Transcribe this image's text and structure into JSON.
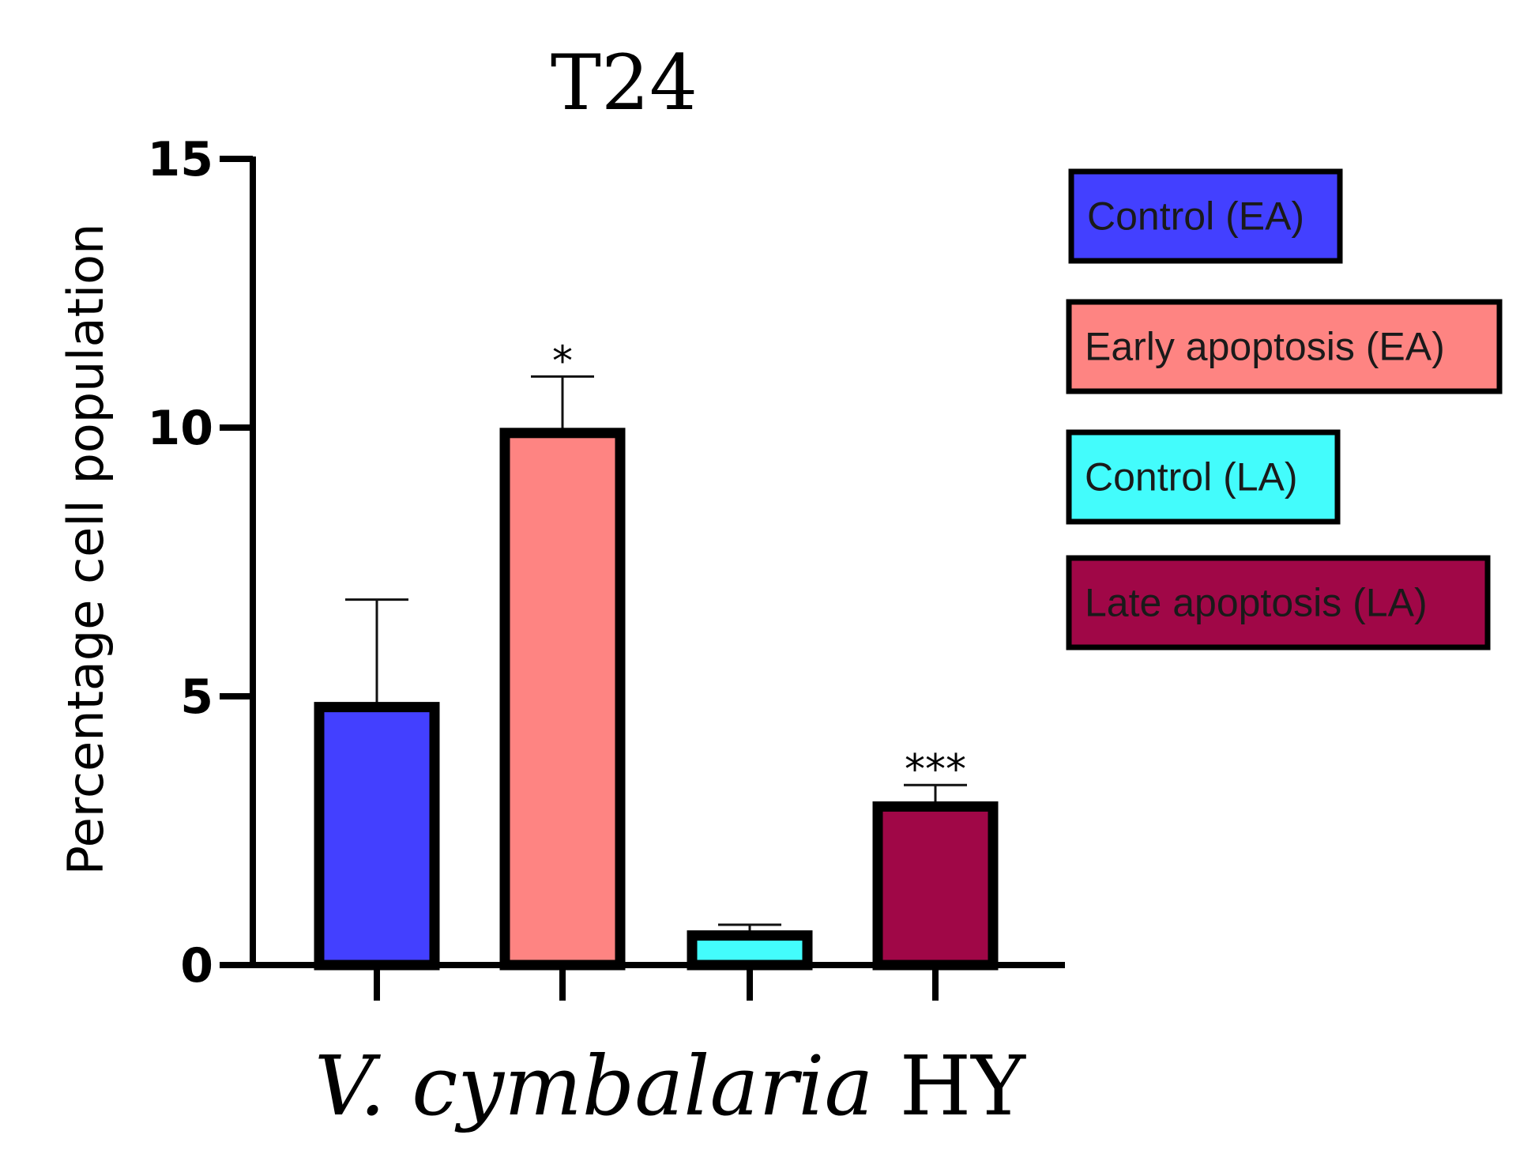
{
  "colors": {
    "control_ea": "#4340ff",
    "early_apoptosis": "#fe8482",
    "control_la": "#43fcfc",
    "late_apoptosis": "#a00747",
    "axis": "#000000",
    "error_bar": "#111111"
  },
  "chart_data": {
    "type": "bar",
    "title": "T24",
    "xlabel_italic": "V. cymbalaria",
    "xlabel_rest": " HY",
    "ylabel": "Percentage cell population",
    "ylim": [
      0,
      15
    ],
    "yticks": [
      0,
      5,
      10,
      15
    ],
    "ytick_labels": [
      "0",
      "5",
      "10",
      "15"
    ],
    "grid": false,
    "legend_position": "right",
    "categories": [
      "Control (EA)",
      "Early apoptosis (EA)",
      "Control (LA)",
      "Late apoptosis (LA)"
    ],
    "values": [
      4.8,
      9.9,
      0.55,
      2.95
    ],
    "errors": [
      2.0,
      1.05,
      0.2,
      0.4
    ],
    "annotations": [
      "",
      "*",
      "",
      "***"
    ],
    "series_colors": [
      "#4340ff",
      "#fe8482",
      "#43fcfc",
      "#a00747"
    ],
    "legend": [
      {
        "label": "Control (EA)",
        "color": "#4340ff"
      },
      {
        "label": "Early apoptosis (EA)",
        "color": "#fe8482"
      },
      {
        "label": "Control (LA)",
        "color": "#43fcfc"
      },
      {
        "label": "Late apoptosis (LA)",
        "color": "#a00747"
      }
    ]
  }
}
